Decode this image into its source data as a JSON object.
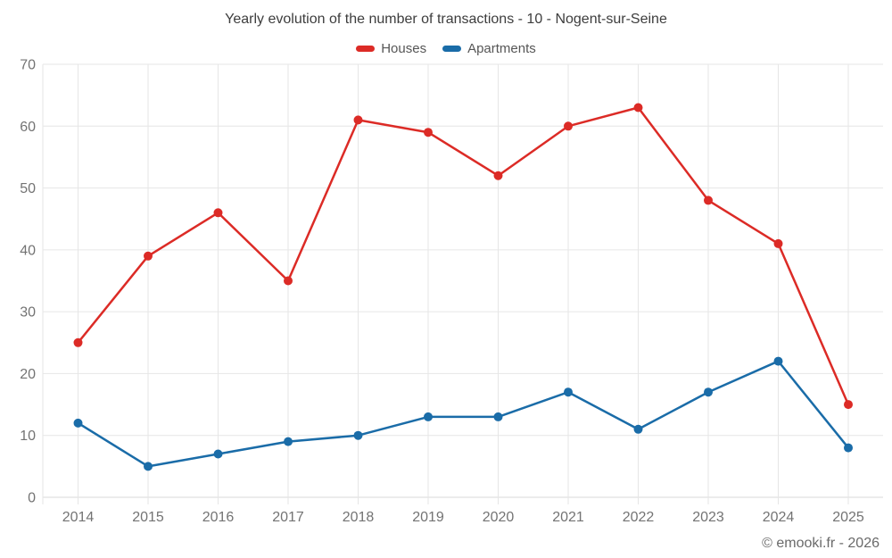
{
  "chart_data": {
    "type": "line",
    "title": "Yearly evolution of the number of transactions - 10 - Nogent-sur-Seine",
    "x": [
      2014,
      2015,
      2016,
      2017,
      2018,
      2019,
      2020,
      2021,
      2022,
      2023,
      2024,
      2025
    ],
    "series": [
      {
        "name": "Houses",
        "color": "#dc2b26",
        "values": [
          25,
          39,
          46,
          35,
          61,
          59,
          52,
          60,
          63,
          48,
          41,
          15
        ]
      },
      {
        "name": "Apartments",
        "color": "#1a6ca8",
        "values": [
          12,
          5,
          7,
          9,
          10,
          13,
          13,
          17,
          11,
          17,
          22,
          8
        ]
      }
    ],
    "ylim": [
      0,
      70
    ],
    "yticks": [
      0,
      10,
      20,
      30,
      40,
      50,
      60,
      70
    ],
    "xlabel": "",
    "ylabel": "",
    "grid": true,
    "legend_position": "top"
  },
  "footer": {
    "copyright": "© emooki.fr - 2026"
  }
}
